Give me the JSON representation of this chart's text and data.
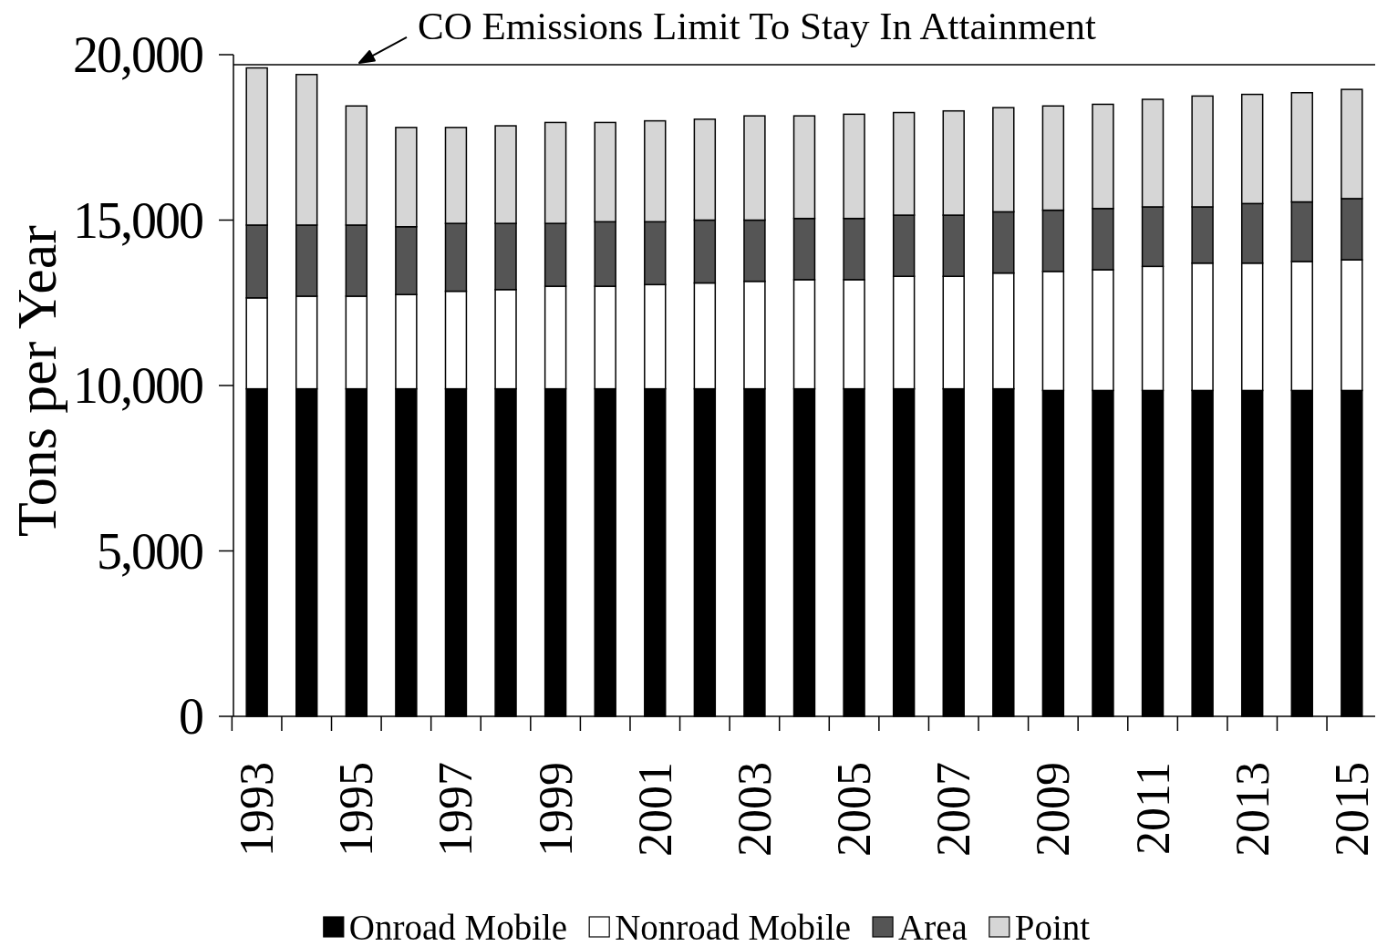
{
  "chart_data": {
    "type": "bar",
    "stacked": true,
    "ylabel": "Tons per Year",
    "categories": [
      "1993",
      null,
      "1995",
      null,
      "1997",
      null,
      "1999",
      null,
      "2001",
      null,
      "2003",
      null,
      "2005",
      null,
      "2007",
      null,
      "2009",
      null,
      "2011",
      null,
      "2013",
      null,
      "2015"
    ],
    "series": [
      {
        "name": "Onroad Mobile",
        "color": "#000000",
        "values": [
          9900,
          9900,
          9900,
          9900,
          9900,
          9900,
          9900,
          9900,
          9900,
          9900,
          9900,
          9900,
          9900,
          9900,
          9900,
          9900,
          9850,
          9850,
          9850,
          9850,
          9850,
          9850,
          9850
        ]
      },
      {
        "name": "Nonroad Mobile",
        "color": "#ffffff",
        "values": [
          2750,
          2800,
          2800,
          2850,
          2950,
          3000,
          3100,
          3100,
          3150,
          3200,
          3250,
          3300,
          3300,
          3400,
          3400,
          3500,
          3600,
          3650,
          3750,
          3850,
          3850,
          3900,
          3950
        ]
      },
      {
        "name": "Area",
        "color": "#555555",
        "values": [
          2200,
          2150,
          2150,
          2050,
          2050,
          2000,
          1900,
          1950,
          1900,
          1900,
          1850,
          1850,
          1850,
          1850,
          1850,
          1850,
          1850,
          1850,
          1800,
          1700,
          1800,
          1800,
          1850
        ]
      },
      {
        "name": "Point",
        "color": "#d6d6d6",
        "values": [
          4750,
          4550,
          3600,
          3000,
          2900,
          2950,
          3050,
          3000,
          3050,
          3050,
          3150,
          3100,
          3150,
          3100,
          3150,
          3150,
          3150,
          3150,
          3250,
          3350,
          3300,
          3300,
          3300
        ]
      }
    ],
    "ylim": [
      0,
      20000
    ],
    "yticks": [
      0,
      {
        "value": 5000,
        "label": "5,000"
      },
      {
        "value": 10000,
        "label": "10,000"
      },
      {
        "value": 15000,
        "label": "15,000"
      },
      {
        "value": 20000,
        "label": "20,000"
      }
    ],
    "ref_lines": [
      {
        "axis": "y",
        "value": 19700,
        "label": "CO Emissions Limit To Stay In Attainment"
      }
    ],
    "legend": "bottom"
  }
}
